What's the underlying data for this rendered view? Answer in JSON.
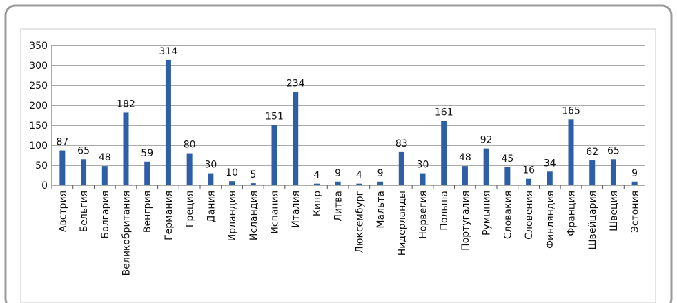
{
  "chart_data": {
    "type": "bar",
    "categories": [
      "Австрия",
      "Бельгия",
      "Болгария",
      "Великобритания",
      "Венгрия",
      "Германия",
      "Греция",
      "Дания",
      "Ирландия",
      "Исландия",
      "Испания",
      "Италия",
      "Кипр",
      "Литва",
      "Люксембург",
      "Мальта",
      "Нидерланды",
      "Норвегия",
      "Польша",
      "Португалия",
      "Румыния",
      "Словакия",
      "Словения",
      "Финляндия",
      "Франция",
      "Швейцария",
      "Швеция",
      "Эстония"
    ],
    "values": [
      87,
      65,
      48,
      182,
      59,
      314,
      80,
      30,
      10,
      5,
      151,
      234,
      4,
      9,
      4,
      9,
      83,
      30,
      161,
      48,
      92,
      45,
      16,
      34,
      165,
      62,
      65,
      9
    ],
    "color": "#2d5ea8",
    "ylim": [
      0,
      350
    ],
    "yticks": [
      0,
      50,
      100,
      150,
      200,
      250,
      300,
      350
    ],
    "grid": true
  }
}
